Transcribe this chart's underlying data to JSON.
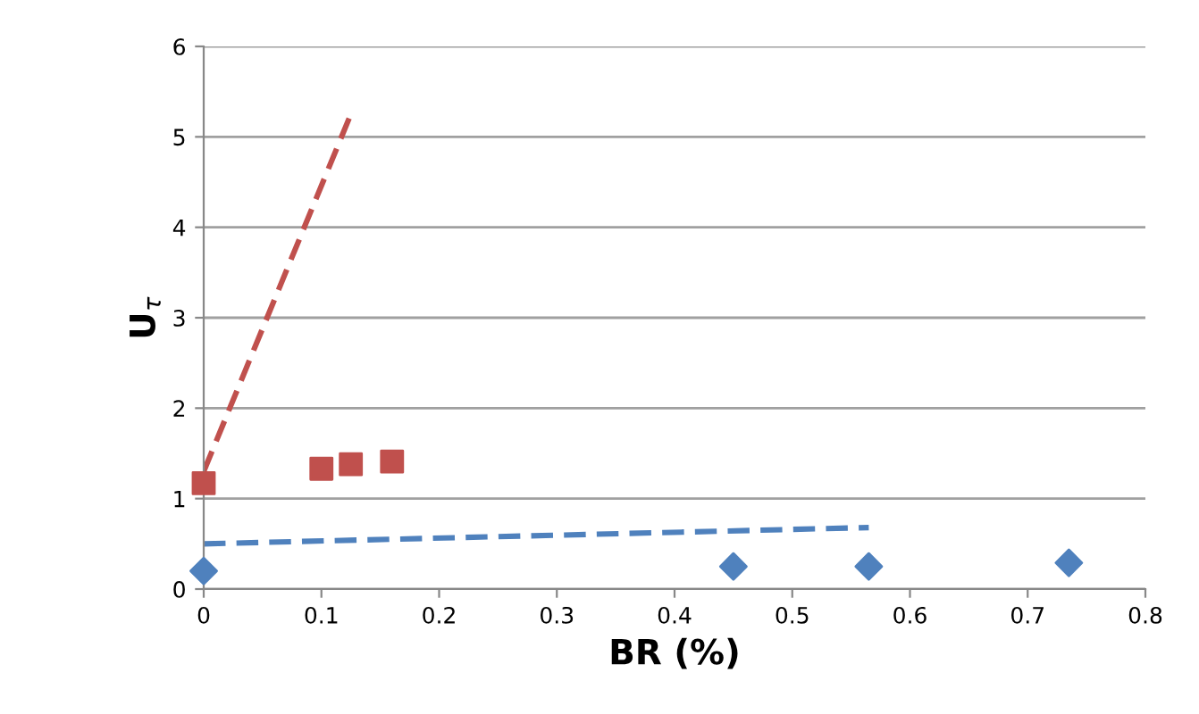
{
  "chart_data": {
    "type": "scatter",
    "xlabel": "BR (%)",
    "ylabel": "U$_{τ}$",
    "xlim": [
      0,
      0.8
    ],
    "xticks": [
      0,
      0.1,
      0.2,
      0.3,
      0.4,
      0.5,
      0.6,
      0.7,
      0.8
    ],
    "ylim": [
      0,
      6
    ],
    "yticks": [
      0,
      1,
      2,
      3,
      4,
      5,
      6
    ],
    "grid": "y",
    "legend": false,
    "series": [
      {
        "color": "#c0504d",
        "marker": "square",
        "x": [
          0,
          0.1,
          0.125,
          0.16
        ],
        "values": [
          1.17,
          1.33,
          1.38,
          1.41
        ]
      },
      {
        "type": "line",
        "color": "#c0504d",
        "line_style": "dashed",
        "marker": "none",
        "x": [
          0,
          0.125
        ],
        "values": [
          1.3,
          5.25
        ]
      },
      {
        "color": "#4f81bd",
        "marker": "diamond",
        "x": [
          0,
          0.45,
          0.565,
          0.735
        ],
        "values": [
          0.2,
          0.25,
          0.25,
          0.29
        ]
      },
      {
        "type": "line",
        "color": "#4f81bd",
        "line_style": "dashed",
        "marker": "none",
        "x": [
          0,
          0.565
        ],
        "values": [
          0.5,
          0.68
        ]
      }
    ]
  }
}
